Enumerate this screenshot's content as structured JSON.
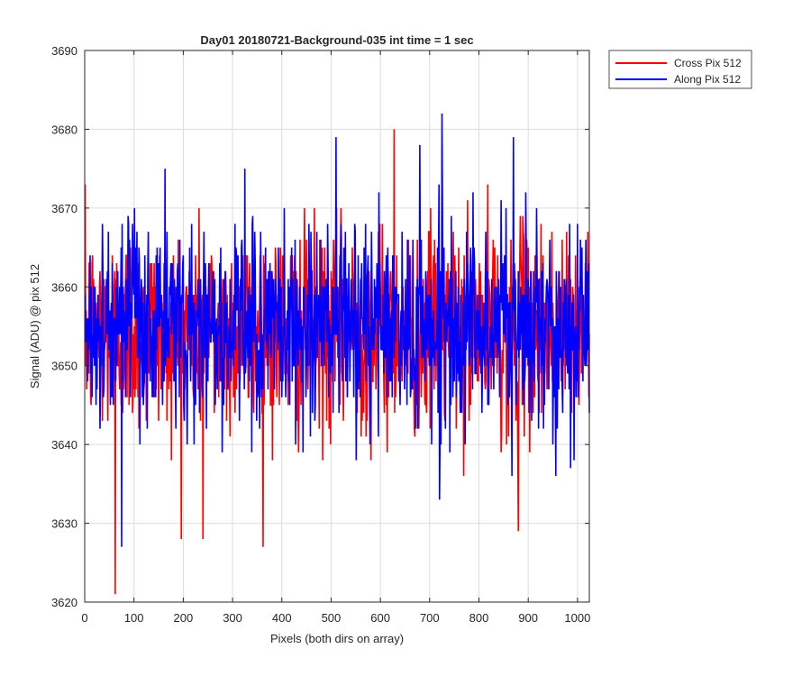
{
  "chart_data": {
    "type": "line",
    "title": "Day01 20180721-Background-035 int time = 1 sec",
    "xlabel": "Pixels (both dirs on array)",
    "ylabel": "Signal (ADU) @ pix 512",
    "xlim": [
      0,
      1024
    ],
    "ylim": [
      3620,
      3690
    ],
    "x_ticks": [
      0,
      100,
      200,
      300,
      400,
      500,
      600,
      700,
      800,
      900,
      1000
    ],
    "y_ticks": [
      3620,
      3630,
      3640,
      3650,
      3660,
      3670,
      3680,
      3690
    ],
    "grid": true,
    "legend_position": "outside-top-right",
    "x": {
      "start": 1,
      "end": 1024,
      "step": 1
    },
    "series": [
      {
        "name": "Cross Pix 512",
        "color": "#ff0000",
        "mean": 3654.5,
        "std": 6.5,
        "annotated_extrema": [
          [
            62,
            3621
          ],
          [
            240,
            3628
          ],
          [
            628,
            3680
          ],
          [
            880,
            3629
          ]
        ]
      },
      {
        "name": "Along Pix 512",
        "color": "#0000ff",
        "mean": 3655,
        "std": 6.5,
        "annotated_extrema": [
          [
            75,
            3627
          ],
          [
            510,
            3679
          ],
          [
            725,
            3682
          ],
          [
            870,
            3679
          ]
        ]
      }
    ]
  }
}
